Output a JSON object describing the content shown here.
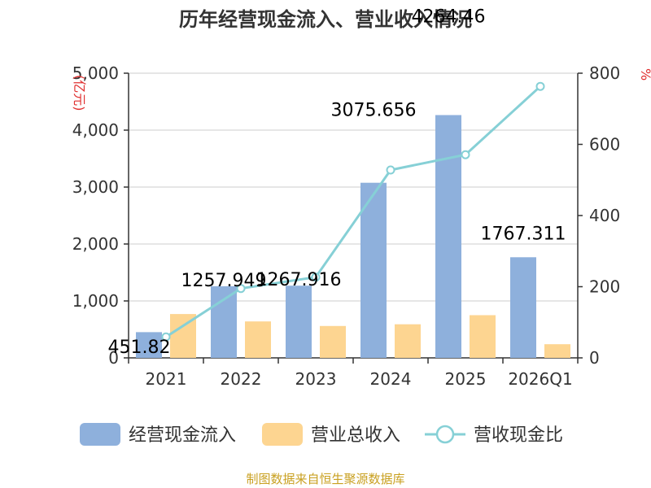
{
  "chart_data": {
    "type": "bar",
    "title": "历年经营现金流入、营业收入情况",
    "categories": [
      "2021",
      "2022",
      "2023",
      "2024",
      "2025",
      "2026Q1"
    ],
    "left_axis": {
      "unit": "(亿元)",
      "ylim": [
        0,
        5000
      ],
      "ticks": [
        "0",
        "1,000",
        "2,000",
        "3,000",
        "4,000",
        "5,000"
      ],
      "tick_values": [
        0,
        1000,
        2000,
        3000,
        4000,
        5000
      ]
    },
    "right_axis": {
      "unit": "%",
      "ylim": [
        0,
        800
      ],
      "ticks": [
        "0",
        "200",
        "400",
        "600",
        "800"
      ],
      "tick_values": [
        0,
        200,
        400,
        600,
        800
      ]
    },
    "series": [
      {
        "name": "经营现金流入",
        "type": "bar",
        "axis": "left",
        "color": "#8eb0dc",
        "values": [
          451.82,
          1257.949,
          1267.916,
          3075.656,
          4264.46,
          1767.311
        ],
        "labels": [
          "451.82",
          "1257.949",
          "1267.916",
          "3075.656",
          "4264.46",
          "1767.311"
        ]
      },
      {
        "name": "营业总收入",
        "type": "bar",
        "axis": "left",
        "color": "#fdd591",
        "values": [
          770,
          640,
          560,
          590,
          750,
          240
        ]
      },
      {
        "name": "营收现金比",
        "type": "line",
        "axis": "right",
        "color": "#86d0d6",
        "values": [
          59,
          195,
          227,
          528,
          571,
          763
        ]
      }
    ],
    "legend": [
      "经营现金流入",
      "营业总收入",
      "营收现金比"
    ],
    "source": "制图数据来自恒生聚源数据库"
  }
}
